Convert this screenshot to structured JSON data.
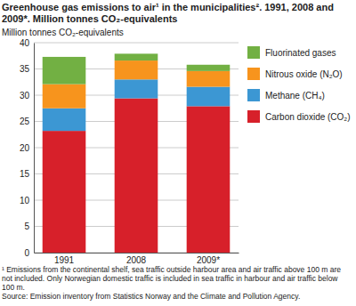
{
  "chart_data": {
    "type": "bar",
    "stacked": true,
    "title": "Greenhouse gas emissions to air¹ in the municipalities². 1991, 2008 and 2009*. Million tonnes CO₂-equivalents",
    "y_label": "Million tonnes CO₂-equivalents",
    "categories": [
      "1991",
      "2008",
      "2009*"
    ],
    "series": [
      {
        "name": "Carbon dioxide (CO₂)",
        "color": "#d7202a",
        "values": [
          23.2,
          29.4,
          27.9
        ]
      },
      {
        "name": "Methane (CH₄)",
        "color": "#3c97d3",
        "values": [
          4.3,
          3.6,
          3.7
        ]
      },
      {
        "name": "Nitrous oxide (N₂O)",
        "color": "#f7941d",
        "values": [
          4.6,
          3.6,
          3.0
        ]
      },
      {
        "name": "Fluorinated gases",
        "color": "#72b043",
        "values": [
          5.2,
          1.3,
          1.2
        ]
      }
    ],
    "ylim": [
      0,
      40
    ],
    "yticks": [
      0,
      5,
      10,
      15,
      20,
      25,
      30,
      35,
      40
    ],
    "grid": true,
    "legend": "right",
    "annotations": [
      "¹ Emissions from the continental shelf, sea traffic outside harbour area and air traffic above 100 m are not included. Only Norwegian domestic traffic is included in sea traffic in harbour and air traffic below 100 m.",
      "Source: Emission inventory from Statistics Norway and the Climate and Pollution Agency."
    ]
  }
}
